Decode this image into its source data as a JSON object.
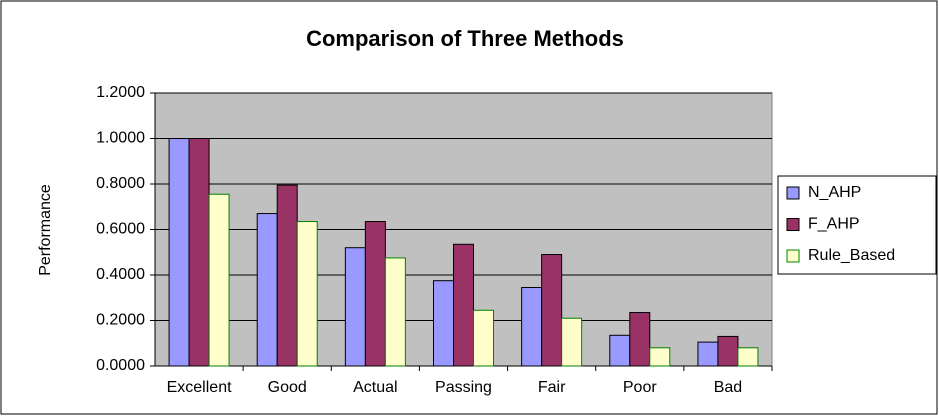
{
  "chart_data": {
    "type": "bar",
    "title": "Comparison of Three Methods",
    "ylabel": "Performance",
    "categories": [
      "Excellent",
      "Good",
      "Actual",
      "Passing",
      "Fair",
      "Poor",
      "Bad"
    ],
    "series": [
      {
        "name": "N_AHP",
        "color": "#9999ff",
        "edgecolor": "#000000",
        "values": [
          1.0,
          0.67,
          0.52,
          0.375,
          0.345,
          0.135,
          0.105
        ]
      },
      {
        "name": "F_AHP",
        "color": "#993366",
        "edgecolor": "#000000",
        "values": [
          1.0,
          0.795,
          0.635,
          0.535,
          0.49,
          0.235,
          0.13
        ]
      },
      {
        "name": "Rule_Based",
        "color": "#ffffcc",
        "edgecolor": "#008000",
        "values": [
          0.755,
          0.635,
          0.475,
          0.245,
          0.21,
          0.08,
          0.08
        ]
      }
    ],
    "ylim": [
      0,
      1.2
    ],
    "yticks": [
      {
        "value": 0,
        "label": "0.0000"
      },
      {
        "value": 0.2,
        "label": "0.2000"
      },
      {
        "value": 0.4,
        "label": "0.4000"
      },
      {
        "value": 0.6,
        "label": "0.6000"
      },
      {
        "value": 0.8,
        "label": "0.8000"
      },
      {
        "value": 1.0,
        "label": "1.0000"
      },
      {
        "value": 1.2,
        "label": "1.2000"
      }
    ],
    "grid": true,
    "legend": "right",
    "plot_background": "#c0c0c0"
  }
}
